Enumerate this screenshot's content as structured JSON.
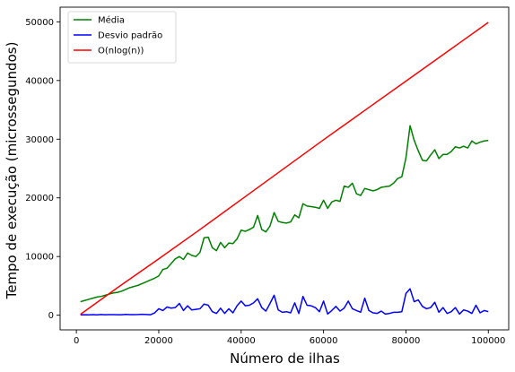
{
  "chart_data": {
    "type": "line",
    "xlabel": "Número de ilhas",
    "ylabel": "Tempo de execução (microssegundos)",
    "xlim": [
      -3950,
      104950
    ],
    "ylim": [
      -2500,
      52500
    ],
    "xticks": [
      0,
      20000,
      40000,
      60000,
      80000,
      100000
    ],
    "yticks": [
      0,
      10000,
      20000,
      30000,
      40000,
      50000
    ],
    "legend_position": "upper-left",
    "grid": false,
    "series": [
      {
        "name": "Média",
        "color": "#008000",
        "x": [
          1000,
          2000,
          3000,
          4000,
          5000,
          6000,
          7000,
          8000,
          9000,
          10000,
          11000,
          12000,
          13000,
          14000,
          15000,
          16000,
          17000,
          18000,
          19000,
          20000,
          21000,
          22000,
          23000,
          24000,
          25000,
          26000,
          27000,
          28000,
          29000,
          30000,
          31000,
          32000,
          33000,
          34000,
          35000,
          36000,
          37000,
          38000,
          39000,
          40000,
          41000,
          42000,
          43000,
          44000,
          45000,
          46000,
          47000,
          48000,
          49000,
          50000,
          51000,
          52000,
          53000,
          54000,
          55000,
          56000,
          57000,
          58000,
          59000,
          60000,
          61000,
          62000,
          63000,
          64000,
          65000,
          66000,
          67000,
          68000,
          69000,
          70000,
          71000,
          72000,
          73000,
          74000,
          75000,
          76000,
          77000,
          78000,
          79000,
          80000,
          81000,
          82000,
          83000,
          84000,
          85000,
          86000,
          87000,
          88000,
          89000,
          90000,
          91000,
          92000,
          93000,
          94000,
          95000,
          96000,
          97000,
          98000,
          99000,
          100000
        ],
        "y": [
          2300,
          2500,
          2700,
          2900,
          3100,
          3200,
          3400,
          3600,
          3800,
          3900,
          4100,
          4400,
          4700,
          4900,
          5100,
          5400,
          5700,
          6000,
          6300,
          6700,
          7800,
          8000,
          8800,
          9600,
          10000,
          9500,
          10600,
          10200,
          10000,
          10700,
          13200,
          13300,
          11500,
          11000,
          12400,
          11500,
          12300,
          12200,
          13000,
          14500,
          14300,
          14600,
          15000,
          17000,
          14600,
          14200,
          15200,
          17500,
          16000,
          15800,
          15700,
          15900,
          17100,
          16600,
          19000,
          18600,
          18500,
          18400,
          18200,
          19600,
          18200,
          19300,
          19600,
          19400,
          22000,
          21800,
          22500,
          20700,
          20400,
          21600,
          21400,
          21200,
          21400,
          21800,
          21900,
          22000,
          22500,
          23300,
          23600,
          26800,
          32300,
          29800,
          28000,
          26400,
          26300,
          27300,
          28200,
          26700,
          27400,
          27400,
          27900,
          28700,
          28500,
          28800,
          28500,
          29700,
          29200,
          29500,
          29700,
          29800
        ]
      },
      {
        "name": "Desvio padrão",
        "color": "#0000ff",
        "x": [
          1000,
          2000,
          3000,
          4000,
          5000,
          6000,
          7000,
          8000,
          9000,
          10000,
          11000,
          12000,
          13000,
          14000,
          15000,
          16000,
          17000,
          18000,
          19000,
          20000,
          21000,
          22000,
          23000,
          24000,
          25000,
          26000,
          27000,
          28000,
          29000,
          30000,
          31000,
          32000,
          33000,
          34000,
          35000,
          36000,
          37000,
          38000,
          39000,
          40000,
          41000,
          42000,
          43000,
          44000,
          45000,
          46000,
          47000,
          48000,
          49000,
          50000,
          51000,
          52000,
          53000,
          54000,
          55000,
          56000,
          57000,
          58000,
          59000,
          60000,
          61000,
          62000,
          63000,
          64000,
          65000,
          66000,
          67000,
          68000,
          69000,
          70000,
          71000,
          72000,
          73000,
          74000,
          75000,
          76000,
          77000,
          78000,
          79000,
          80000,
          81000,
          82000,
          83000,
          84000,
          85000,
          86000,
          87000,
          88000,
          89000,
          90000,
          91000,
          92000,
          93000,
          94000,
          95000,
          96000,
          97000,
          98000,
          99000,
          100000
        ],
        "y": [
          50,
          80,
          60,
          100,
          60,
          120,
          80,
          90,
          100,
          70,
          80,
          130,
          90,
          100,
          110,
          150,
          120,
          80,
          400,
          1100,
          800,
          1400,
          1200,
          1300,
          2000,
          800,
          1600,
          900,
          1000,
          1100,
          1900,
          1700,
          600,
          300,
          1200,
          300,
          1100,
          400,
          1600,
          2400,
          1600,
          1700,
          2100,
          2800,
          1300,
          700,
          2000,
          3400,
          900,
          500,
          600,
          400,
          2100,
          300,
          3200,
          1700,
          1600,
          1300,
          600,
          2400,
          200,
          800,
          1500,
          700,
          1200,
          2400,
          1100,
          800,
          500,
          2900,
          800,
          400,
          300,
          700,
          200,
          300,
          500,
          500,
          600,
          3700,
          4500,
          2300,
          2600,
          1500,
          1100,
          1300,
          2200,
          500,
          1300,
          300,
          600,
          1300,
          200,
          900,
          700,
          300,
          1700,
          400,
          800,
          600
        ]
      },
      {
        "name": "O(nlog(n))",
        "color": "#ff0000",
        "x": [
          1000,
          10000,
          20000,
          30000,
          40000,
          50000,
          60000,
          70000,
          80000,
          90000,
          100000
        ],
        "y": [
          150,
          4700,
          9600,
          14600,
          19700,
          24800,
          29900,
          34900,
          39900,
          44900,
          49900
        ]
      }
    ]
  }
}
